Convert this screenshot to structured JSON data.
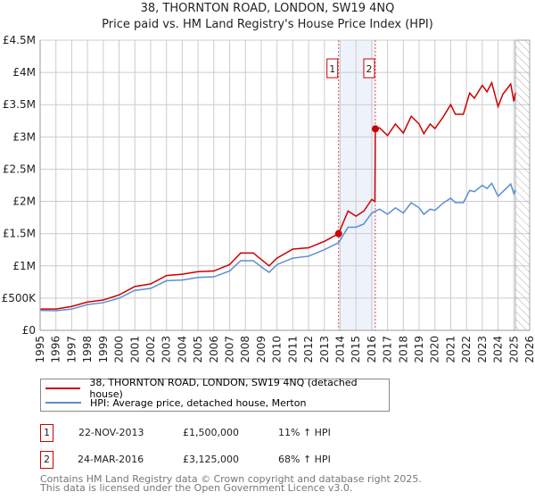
{
  "title": "38, THORNTON ROAD, LONDON, SW19 4NQ",
  "subtitle": "Price paid vs. HM Land Registry's House Price Index (HPI)",
  "chart_data": {
    "type": "line",
    "title": "38, THORNTON ROAD, LONDON, SW19 4NQ - Price paid vs. HM Land Registry's House Price Index (HPI)",
    "xlim": [
      1995,
      2026
    ],
    "ylim": [
      0,
      4500000
    ],
    "xticks": [
      "1995",
      "1996",
      "1997",
      "1998",
      "1999",
      "2000",
      "2001",
      "2002",
      "2003",
      "2004",
      "2005",
      "2006",
      "2007",
      "2008",
      "2009",
      "2010",
      "2011",
      "2012",
      "2013",
      "2014",
      "2015",
      "2016",
      "2017",
      "2018",
      "2019",
      "2020",
      "2021",
      "2022",
      "2023",
      "2024",
      "2025",
      "2026"
    ],
    "yticks": [
      {
        "v": 0,
        "label": "£0"
      },
      {
        "v": 500000,
        "label": "£500K"
      },
      {
        "v": 1000000,
        "label": "£1M"
      },
      {
        "v": 1500000,
        "label": "£1.5M"
      },
      {
        "v": 2000000,
        "label": "£2M"
      },
      {
        "v": 2500000,
        "label": "£2.5M"
      },
      {
        "v": 3000000,
        "label": "£3M"
      },
      {
        "v": 3500000,
        "label": "£3.5M"
      },
      {
        "v": 4000000,
        "label": "£4M"
      },
      {
        "v": 4500000,
        "label": "£4.5M"
      }
    ],
    "grid": true,
    "shaded_range": [
      2013.9,
      2016.23
    ],
    "forecast_hatch_from": 2025.1,
    "series": [
      {
        "name": "38, THORNTON ROAD, LONDON, SW19 4NQ (detached house)",
        "color": "#cc0000",
        "x": [
          1995,
          1996,
          1997,
          1998,
          1999,
          2000,
          2001,
          2002,
          2003,
          2004,
          2005,
          2006,
          2007,
          2007.7,
          2008.5,
          2009.2,
          2009.5,
          2010,
          2011,
          2012,
          2013,
          2013.9,
          2014.5,
          2015,
          2015.5,
          2016,
          2016.2,
          2016.23,
          2016.5,
          2017,
          2017.5,
          2018,
          2018.5,
          2019,
          2019.3,
          2019.7,
          2020,
          2020.5,
          2021,
          2021.3,
          2021.8,
          2022.2,
          2022.5,
          2023,
          2023.3,
          2023.6,
          2024,
          2024.3,
          2024.8,
          2025,
          2025.1
        ],
        "y": [
          330000,
          330000,
          370000,
          440000,
          470000,
          550000,
          680000,
          720000,
          850000,
          870000,
          910000,
          920000,
          1020000,
          1200000,
          1200000,
          1060000,
          1000000,
          1120000,
          1260000,
          1280000,
          1380000,
          1500000,
          1850000,
          1770000,
          1850000,
          2030000,
          2000000,
          3125000,
          3140000,
          3020000,
          3200000,
          3060000,
          3320000,
          3200000,
          3050000,
          3200000,
          3130000,
          3300000,
          3500000,
          3350000,
          3350000,
          3680000,
          3600000,
          3800000,
          3700000,
          3840000,
          3470000,
          3660000,
          3820000,
          3550000,
          3680000
        ]
      },
      {
        "name": "HPI: Average price, detached house, Merton",
        "color": "#5b8fd0",
        "x": [
          1995,
          1996,
          1997,
          1998,
          1999,
          2000,
          2001,
          2002,
          2003,
          2004,
          2005,
          2006,
          2007,
          2007.7,
          2008.5,
          2009.2,
          2009.5,
          2010,
          2011,
          2012,
          2013,
          2013.9,
          2014.5,
          2015,
          2015.5,
          2016,
          2016.5,
          2017,
          2017.5,
          2018,
          2018.5,
          2019,
          2019.3,
          2019.7,
          2020,
          2020.5,
          2021,
          2021.3,
          2021.8,
          2022.2,
          2022.5,
          2023,
          2023.3,
          2023.6,
          2024,
          2024.3,
          2024.8,
          2025,
          2025.1
        ],
        "y": [
          310000,
          305000,
          330000,
          400000,
          430000,
          500000,
          620000,
          650000,
          770000,
          780000,
          820000,
          830000,
          920000,
          1080000,
          1080000,
          950000,
          900000,
          1020000,
          1120000,
          1150000,
          1250000,
          1360000,
          1600000,
          1600000,
          1650000,
          1820000,
          1880000,
          1800000,
          1900000,
          1820000,
          1980000,
          1900000,
          1800000,
          1880000,
          1860000,
          1970000,
          2050000,
          1980000,
          1980000,
          2170000,
          2150000,
          2250000,
          2200000,
          2280000,
          2080000,
          2150000,
          2270000,
          2120000,
          2180000
        ]
      }
    ],
    "annotations": [
      {
        "label": "1",
        "x": 2013.9,
        "price": 1500000
      },
      {
        "label": "2",
        "x": 2016.23,
        "price": 3125000
      }
    ]
  },
  "legend": {
    "items": [
      {
        "label": "38, THORNTON ROAD, LONDON, SW19 4NQ (detached house)",
        "color": "#cc0000"
      },
      {
        "label": "HPI: Average price, detached house, Merton",
        "color": "#5b8fd0"
      }
    ]
  },
  "transactions": [
    {
      "num": "1",
      "date": "22-NOV-2013",
      "price": "£1,500,000",
      "hpi": "11% ↑ HPI"
    },
    {
      "num": "2",
      "date": "24-MAR-2016",
      "price": "£3,125,000",
      "hpi": "68% ↑ HPI"
    }
  ],
  "footer": {
    "line1": "Contains HM Land Registry data © Crown copyright and database right 2025.",
    "line2": "This data is licensed under the Open Government Licence v3.0."
  }
}
